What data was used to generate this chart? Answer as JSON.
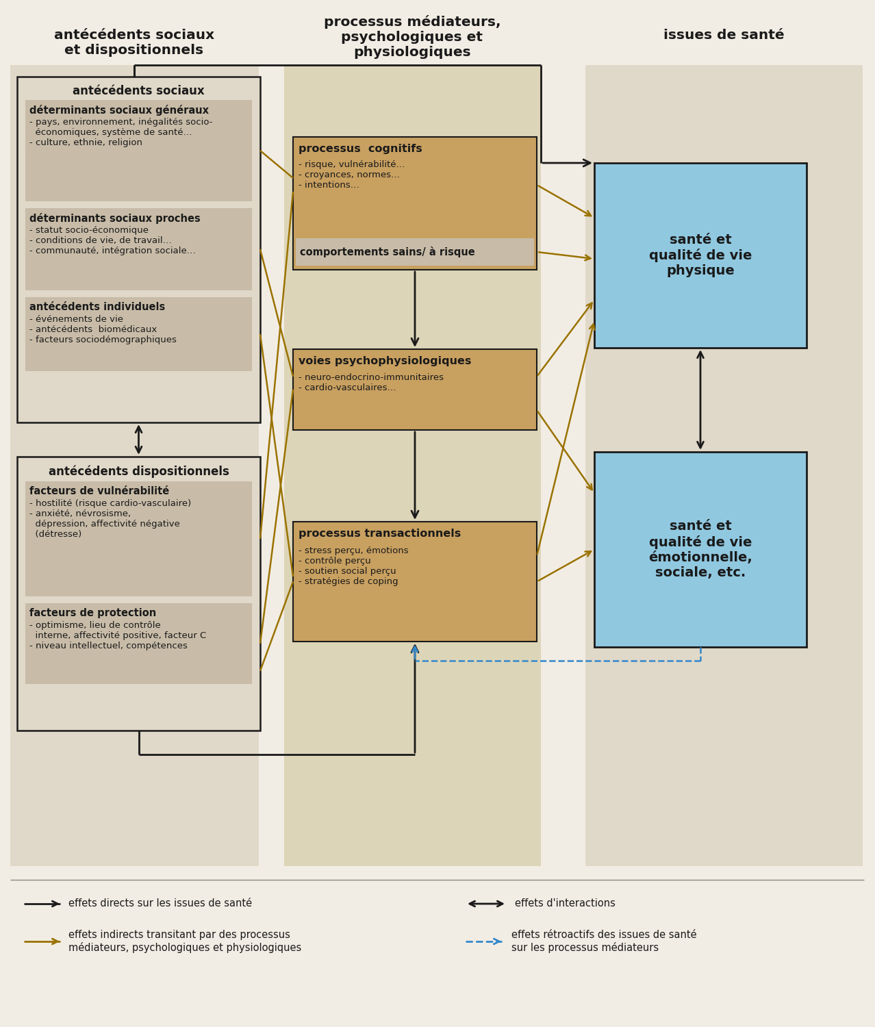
{
  "bg_color": "#f2ede4",
  "col1_bg": "#e0d8c8",
  "col2_bg": "#ddd5b8",
  "col3_bg": "#e0d8c8",
  "box_tan_light": "#c8bca8",
  "box_tan_medium": "#c8a060",
  "box_blue": "#90c8e0",
  "box_outline": "#1a1a1a",
  "arrow_black": "#1a1a1a",
  "arrow_gold": "#9a7200",
  "arrow_blue_dash": "#3388cc",
  "col1_header": "antécédents sociaux\net dispositionnels",
  "col2_header": "processus médiateurs,\npsychologiques et\nphysiologiques",
  "col3_header": "issues de santé",
  "social_box_title": "antécédents sociaux",
  "social_sub1_title": "déterminants sociaux généraux",
  "social_sub1_text": "- pays, environnement, inégalités socio-\n  économiques, système de santé…\n- culture, ethnie, religion",
  "social_sub2_title": "déterminants sociaux proches",
  "social_sub2_text": "- statut socio-économique\n- conditions de vie, de travail…\n- communauté, intégration sociale…",
  "social_sub3_title": "antécédents individuels",
  "social_sub3_text": "- événements de vie\n- antécédents  biomédicaux\n- facteurs sociodémographiques",
  "disp_box_title": "antécédents dispositionnels",
  "disp_sub1_title": "facteurs de vulnérabilité",
  "disp_sub1_text": "- hostilité (risque cardio-vasculaire)\n- anxiété, névrosisme,\n  dépression, affectivité négative\n  (détresse)",
  "disp_sub2_title": "facteurs de protection",
  "disp_sub2_text": "- optimisme, lieu de contrôle\n  interne, affectivité positive, facteur C\n- niveau intellectuel, compétences",
  "cog_title": "processus  cognitifs",
  "cog_text": "- risque, vulnérabilité…\n- croyances, normes…\n- intentions…",
  "behav_title": "comportements sains/ à risque",
  "psych_title": "voies psychophysiologiques",
  "psych_text": "- neuro-endocrino-immunitaires\n- cardio-vasculaires…",
  "trans_title": "processus transactionnels",
  "trans_text": "- stress perçu, émotions\n- contrôle perçu\n- soutien social perçu\n- stratégies de coping",
  "health1_text": "santé et\nqualité de vie\nphysique",
  "health2_text": "santé et\nqualité de vie\némotionnelle,\nsociale, etc.",
  "legend1": "effets directs sur les issues de santé",
  "legend2_line1": "effets indirects transitant par des processus",
  "legend2_line2": "médiateurs, psychologiques et physiologiques",
  "legend3": "effets d'interactions",
  "legend4_line1": "effets rétroactifs des issues de santé",
  "legend4_line2": "sur les processus médiateurs"
}
